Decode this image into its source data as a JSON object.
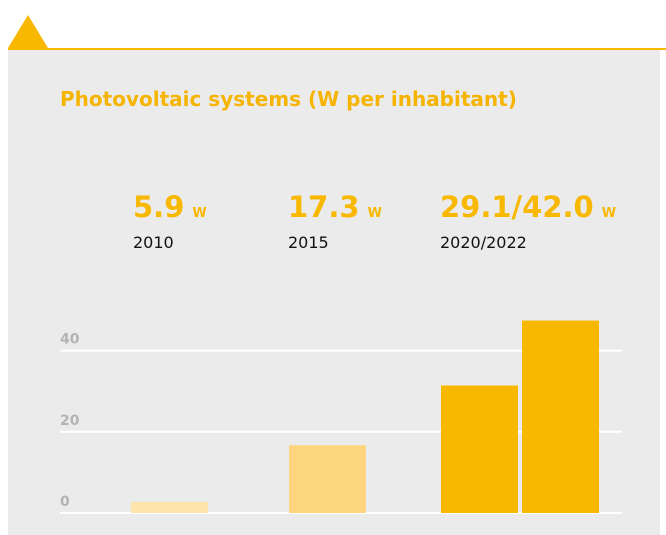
{
  "chart_data": {
    "type": "bar",
    "title": "Photovoltaic systems (W per inhabitant)",
    "stats": [
      {
        "value": "5.9",
        "unit": "W",
        "label": "2010"
      },
      {
        "value": "17.3",
        "unit": "W",
        "label": "2015"
      },
      {
        "value": "29.1/42.0",
        "unit": "W",
        "label": "2020/2022"
      }
    ],
    "categories": [
      null,
      null,
      null,
      null
    ],
    "values": [
      2.7,
      16.7,
      31.4,
      47.4
    ],
    "colors": [
      "#fde4ab",
      "#fdd57f",
      "#f9b800",
      "#f9b800"
    ],
    "ylim": [
      0,
      50
    ],
    "yticks": [
      0,
      20,
      40
    ],
    "grid": true
  }
}
